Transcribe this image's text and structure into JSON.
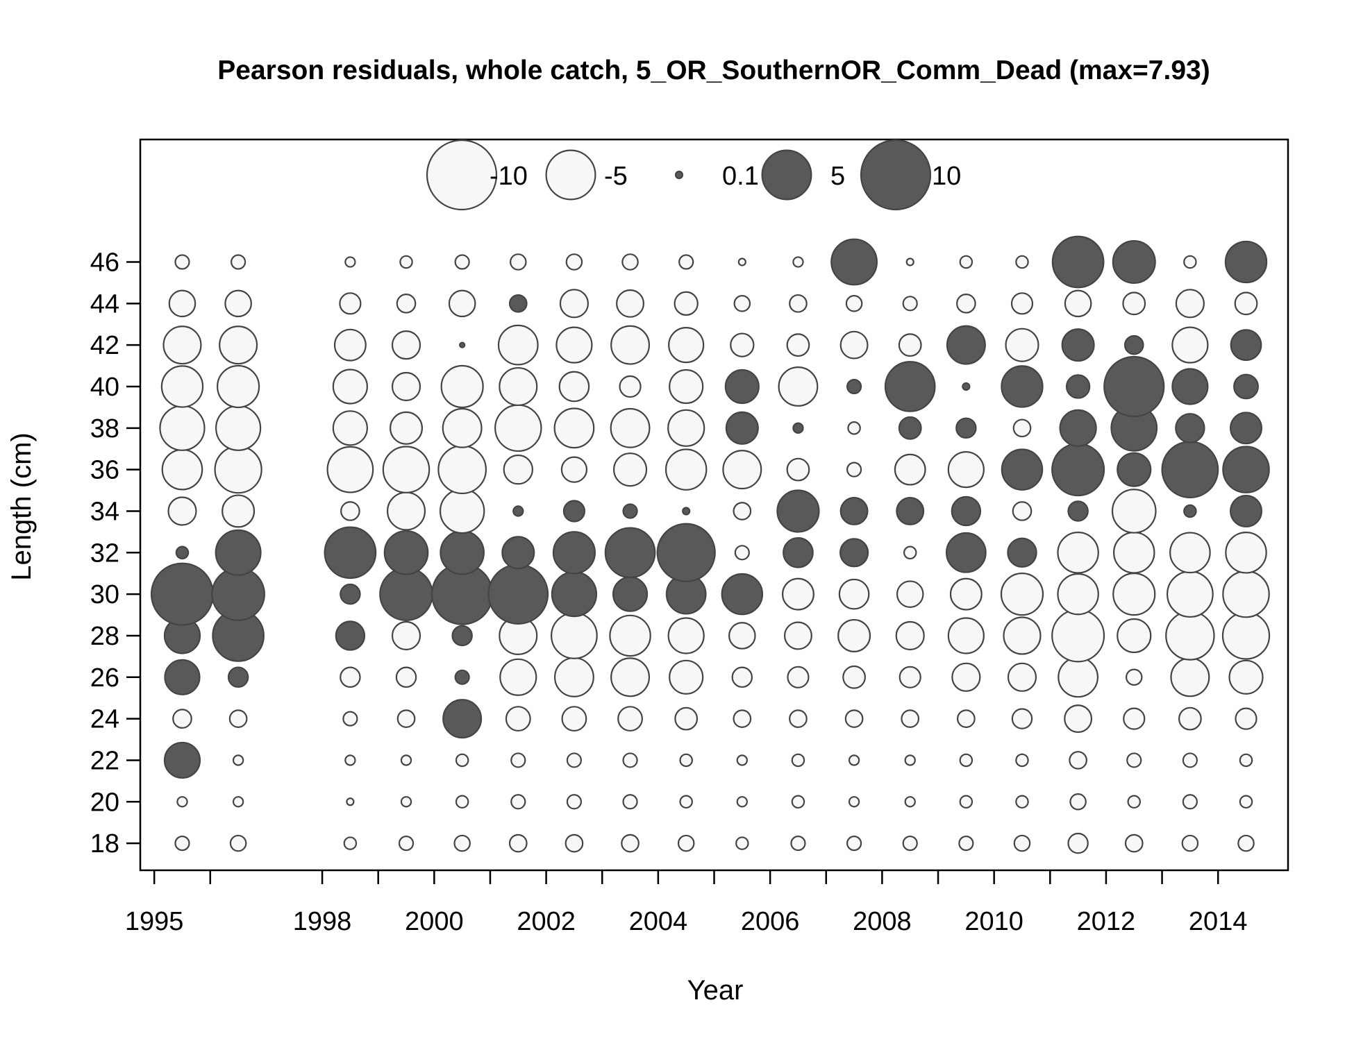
{
  "chart_data": {
    "type": "bubble",
    "title": "Pearson residuals, whole catch, 5_OR_SouthernOR_Comm_Dead (max=7.93)",
    "xlabel": "Year",
    "ylabel": "Length (cm)",
    "xlim": [
      1994.75,
      2015.25
    ],
    "ylim": [
      16.7,
      51.9
    ],
    "x_ticks": [
      1995,
      1996,
      1998,
      1999,
      2000,
      2001,
      2002,
      2003,
      2004,
      2005,
      2006,
      2007,
      2008,
      2009,
      2010,
      2011,
      2012,
      2013,
      2014
    ],
    "x_tick_labels": [
      "1995",
      "1998",
      "2000",
      "2002",
      "2004",
      "2006",
      "2008",
      "2010",
      "2012",
      "2014"
    ],
    "y_ticks": [
      18,
      20,
      22,
      24,
      26,
      28,
      30,
      32,
      34,
      36,
      38,
      40,
      42,
      44,
      46
    ],
    "grid": false,
    "legend": {
      "position": "top-center",
      "entries": [
        {
          "label": "-10",
          "value": -10
        },
        {
          "label": "-5",
          "value": -5
        },
        {
          "label": "0.1",
          "value": 0.1
        },
        {
          "label": "5",
          "value": 5
        },
        {
          "label": "10",
          "value": 10
        }
      ]
    },
    "colors": {
      "negative_fill": "#f7f7f7",
      "positive_fill": "#595959",
      "stroke": "#444444"
    },
    "point_x_offset": 0.5,
    "lengths": [
      18,
      20,
      22,
      24,
      26,
      28,
      30,
      32,
      34,
      36,
      38,
      40,
      42,
      44,
      46
    ],
    "years": [
      1995,
      1996,
      1998,
      1999,
      2000,
      2001,
      2002,
      2003,
      2004,
      2005,
      2006,
      2007,
      2008,
      2009,
      2010,
      2011,
      2012,
      2013,
      2014
    ],
    "residuals": [
      [
        -0.4,
        -0.2,
        2.6,
        -0.7,
        2.5,
        2.6,
        7.9,
        0.3,
        -1.6,
        -3.3,
        -4.1,
        -3.5,
        -2.9,
        -1.4,
        -0.4
      ],
      [
        -0.5,
        -0.2,
        -0.2,
        -0.6,
        0.8,
        5.4,
        5.7,
        4.2,
        -2.1,
        -4.5,
        -4.1,
        -3.6,
        -2.9,
        -1.4,
        -0.4
      ],
      [
        -0.3,
        -0.1,
        -0.2,
        -0.4,
        -0.8,
        1.7,
        0.8,
        5.4,
        -0.7,
        -4.3,
        -2.4,
        -2.4,
        -2.0,
        -0.9,
        -0.2
      ],
      [
        -0.4,
        -0.2,
        -0.2,
        -0.6,
        -0.8,
        -1.6,
        5.7,
        3.9,
        -2.9,
        -4.4,
        -2.1,
        -1.6,
        -1.6,
        -0.7,
        -0.3
      ],
      [
        -0.5,
        -0.3,
        -0.3,
        3.0,
        0.4,
        0.8,
        7.6,
        3.9,
        -4.0,
        -4.7,
        -3.1,
        -3.6,
        0.05,
        -1.4,
        -0.4
      ],
      [
        -0.6,
        -0.4,
        -0.4,
        -1.2,
        -2.7,
        -2.9,
        7.3,
        2.1,
        0.2,
        -1.7,
        -4.4,
        -2.9,
        -3.2,
        0.6,
        -0.5
      ],
      [
        -0.6,
        -0.4,
        -0.4,
        -1.2,
        -3.1,
        -4.3,
        4.1,
        3.6,
        0.9,
        -1.3,
        -3.2,
        -1.8,
        -2.6,
        -1.6,
        -0.5
      ],
      [
        -0.6,
        -0.4,
        -0.4,
        -1.2,
        -3.0,
        -3.4,
        2.4,
        5.1,
        0.4,
        -2.2,
        -3.1,
        -0.9,
        -3.0,
        -1.5,
        -0.5
      ],
      [
        -0.5,
        -0.3,
        -0.3,
        -1.0,
        -2.3,
        -2.6,
        3.2,
        6.9,
        0.1,
        -3.4,
        -2.7,
        -2.3,
        -2.5,
        -1.1,
        -0.4
      ],
      [
        -0.3,
        -0.2,
        -0.2,
        -0.6,
        -0.8,
        -1.4,
        3.4,
        -0.4,
        -0.6,
        -3.0,
        2.1,
        2.3,
        -1.1,
        -0.5,
        -0.1
      ],
      [
        -0.4,
        -0.3,
        -0.3,
        -0.6,
        -0.9,
        -1.5,
        -2.0,
        1.8,
        3.6,
        -1.0,
        0.2,
        -3.1,
        -1.0,
        -0.6,
        -0.2
      ],
      [
        -0.4,
        -0.2,
        -0.2,
        -0.6,
        -1.0,
        -2.1,
        -1.8,
        1.6,
        1.5,
        -0.4,
        -0.3,
        0.4,
        -1.5,
        -0.5,
        4.3
      ],
      [
        -0.4,
        -0.2,
        -0.2,
        -0.6,
        -0.9,
        -1.6,
        -1.4,
        -0.3,
        1.5,
        -1.9,
        1.0,
        5.1,
        -1.0,
        -0.4,
        -0.1
      ],
      [
        -0.4,
        -0.3,
        -0.3,
        -0.6,
        -1.6,
        -2.6,
        -2.0,
        3.2,
        1.7,
        -2.6,
        0.8,
        0.1,
        3.0,
        -0.7,
        -0.3
      ],
      [
        -0.5,
        -0.3,
        -0.3,
        -0.8,
        -1.6,
        -2.8,
        -3.6,
        1.7,
        -0.7,
        3.4,
        -0.6,
        3.5,
        -2.2,
        -0.9,
        -0.3
      ],
      [
        -0.8,
        -0.5,
        -0.6,
        -1.5,
        -3.2,
        -5.6,
        -3.4,
        -3.4,
        0.8,
        5.6,
        2.7,
        1.1,
        2.1,
        -1.4,
        5.4
      ],
      [
        -0.6,
        -0.3,
        -0.4,
        -0.9,
        -0.5,
        -2.3,
        -3.6,
        -3.4,
        -3.9,
        2.3,
        4.3,
        7.4,
        0.7,
        -1.0,
        3.7
      ],
      [
        -0.5,
        -0.4,
        -0.4,
        -1.0,
        -3.0,
        -4.8,
        -4.3,
        -3.3,
        0.3,
        6.5,
        1.7,
        2.6,
        -2.6,
        -1.6,
        -0.3
      ],
      [
        -0.5,
        -0.3,
        -0.3,
        -0.9,
        -2.3,
        -4.5,
        -4.4,
        -3.4,
        2.0,
        4.4,
        2.0,
        1.2,
        1.9,
        -1.0,
        3.5
      ]
    ]
  }
}
